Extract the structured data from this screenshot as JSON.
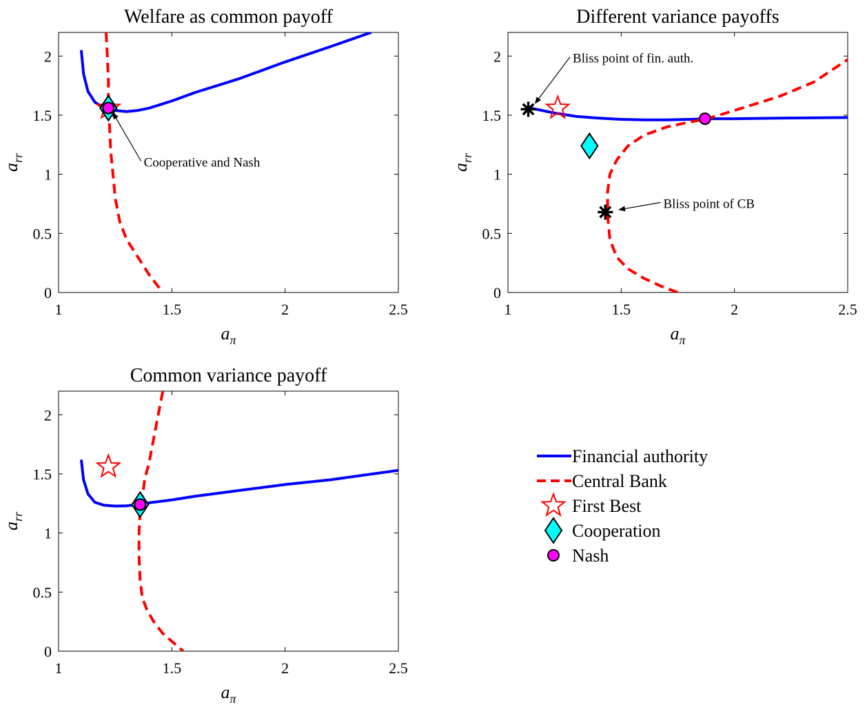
{
  "colors": {
    "financial_authority": "#0000ff",
    "central_bank": "#ff0000",
    "first_best": "#ff0000",
    "cooperation": "#00ffff",
    "nash": "#ff00ff",
    "bliss": "#000000"
  },
  "legend": {
    "position": "right, below top-right panel",
    "items": [
      {
        "label": "Financial authority",
        "marker": "solid-line"
      },
      {
        "label": "Central Bank",
        "marker": "dashed-line"
      },
      {
        "label": "First Best",
        "marker": "star"
      },
      {
        "label": "Cooperation",
        "marker": "diamond"
      },
      {
        "label": "Nash",
        "marker": "circle"
      }
    ]
  },
  "chart_data": [
    {
      "type": "line",
      "title": "Welfare as common payoff",
      "xlabel": "a_π",
      "ylabel": "a_rr",
      "xlim": [
        1,
        2.5
      ],
      "ylim": [
        0,
        2.2
      ],
      "xticks": [
        "1",
        "1.5",
        "2",
        "2.5"
      ],
      "yticks": [
        "0",
        "0.5",
        "1",
        "1.5",
        "2"
      ],
      "grid": false,
      "series": [
        {
          "name": "Financial authority",
          "style": "solid",
          "x": [
            1.1,
            1.11,
            1.13,
            1.16,
            1.2,
            1.25,
            1.3,
            1.35,
            1.4,
            1.5,
            1.6,
            1.8,
            2.0,
            2.2,
            2.38
          ],
          "y": [
            2.05,
            1.85,
            1.7,
            1.61,
            1.56,
            1.54,
            1.53,
            1.54,
            1.56,
            1.62,
            1.69,
            1.81,
            1.95,
            2.08,
            2.2
          ]
        },
        {
          "name": "Central Bank",
          "style": "dashed",
          "x": [
            1.21,
            1.215,
            1.22,
            1.22,
            1.225,
            1.23,
            1.24,
            1.25,
            1.27,
            1.3,
            1.35,
            1.4,
            1.46
          ],
          "y": [
            2.2,
            2.0,
            1.8,
            1.6,
            1.4,
            1.2,
            1.0,
            0.8,
            0.6,
            0.45,
            0.3,
            0.15,
            0.0
          ]
        }
      ],
      "markers": {
        "first_best": {
          "x": 1.22,
          "y": 1.56
        },
        "cooperation": {
          "x": 1.22,
          "y": 1.56
        },
        "nash": {
          "x": 1.22,
          "y": 1.56
        }
      },
      "annotations": [
        {
          "text": "Cooperative and Nash",
          "x": 1.24,
          "y": 1.52,
          "text_x": 1.37,
          "text_y": 1.1
        }
      ]
    },
    {
      "type": "line",
      "title": "Different variance payoffs",
      "xlabel": "a_π",
      "ylabel": "a_rr",
      "xlim": [
        1,
        2.5
      ],
      "ylim": [
        0,
        2.2
      ],
      "xticks": [
        "1",
        "1.5",
        "2",
        "2.5"
      ],
      "yticks": [
        "0",
        "0.5",
        "1",
        "1.5",
        "2"
      ],
      "grid": false,
      "series": [
        {
          "name": "Financial authority",
          "style": "solid",
          "x": [
            1.1,
            1.2,
            1.3,
            1.4,
            1.5,
            1.6,
            1.7,
            1.8,
            1.9,
            2.0,
            2.2,
            2.5
          ],
          "y": [
            1.56,
            1.52,
            1.49,
            1.475,
            1.465,
            1.46,
            1.46,
            1.465,
            1.47,
            1.47,
            1.475,
            1.48
          ]
        },
        {
          "name": "Central Bank",
          "style": "dashed",
          "x": [
            1.75,
            1.68,
            1.6,
            1.53,
            1.48,
            1.45,
            1.44,
            1.44,
            1.45,
            1.48,
            1.53,
            1.6,
            1.7,
            1.8,
            1.88,
            2.0,
            2.2,
            2.35,
            2.5
          ],
          "y": [
            0.0,
            0.05,
            0.12,
            0.2,
            0.3,
            0.45,
            0.65,
            0.85,
            1.0,
            1.12,
            1.24,
            1.33,
            1.4,
            1.44,
            1.47,
            1.54,
            1.66,
            1.78,
            1.97
          ]
        }
      ],
      "markers": {
        "first_best": {
          "x": 1.22,
          "y": 1.56
        },
        "cooperation": {
          "x": 1.36,
          "y": 1.24
        },
        "nash": {
          "x": 1.87,
          "y": 1.47
        },
        "bliss_fin_auth": {
          "x": 1.09,
          "y": 1.55
        },
        "bliss_cb": {
          "x": 1.43,
          "y": 0.68
        }
      },
      "annotations": [
        {
          "text": "Bliss point of fin. auth.",
          "x": 1.12,
          "y": 1.6,
          "text_x": 1.28,
          "text_y": 1.98
        },
        {
          "text": "Bliss point of CB",
          "x": 1.49,
          "y": 0.7,
          "text_x": 1.68,
          "text_y": 0.75
        }
      ]
    },
    {
      "type": "line",
      "title": "Common variance payoff",
      "xlabel": "a_π",
      "ylabel": "a_rr",
      "xlim": [
        1,
        2.5
      ],
      "ylim": [
        0,
        2.2
      ],
      "xticks": [
        "1",
        "1.5",
        "2",
        "2.5"
      ],
      "yticks": [
        "0",
        "0.5",
        "1",
        "1.5",
        "2"
      ],
      "grid": false,
      "series": [
        {
          "name": "Financial authority",
          "style": "solid",
          "x": [
            1.1,
            1.11,
            1.13,
            1.16,
            1.2,
            1.25,
            1.3,
            1.35,
            1.4,
            1.5,
            1.6,
            1.8,
            2.0,
            2.2,
            2.5
          ],
          "y": [
            1.62,
            1.45,
            1.33,
            1.26,
            1.235,
            1.228,
            1.23,
            1.24,
            1.255,
            1.28,
            1.31,
            1.36,
            1.41,
            1.45,
            1.53
          ]
        },
        {
          "name": "Central Bank",
          "style": "dashed",
          "x": [
            1.46,
            1.44,
            1.42,
            1.4,
            1.38,
            1.37,
            1.36,
            1.355,
            1.355,
            1.36,
            1.37,
            1.39,
            1.42,
            1.46,
            1.52,
            1.55
          ],
          "y": [
            2.2,
            2.0,
            1.8,
            1.6,
            1.45,
            1.3,
            1.2,
            1.0,
            0.8,
            0.6,
            0.45,
            0.35,
            0.25,
            0.15,
            0.05,
            0.0
          ]
        }
      ],
      "markers": {
        "first_best": {
          "x": 1.22,
          "y": 1.56
        },
        "cooperation": {
          "x": 1.36,
          "y": 1.24
        },
        "nash": {
          "x": 1.36,
          "y": 1.24
        }
      },
      "annotations": []
    }
  ]
}
